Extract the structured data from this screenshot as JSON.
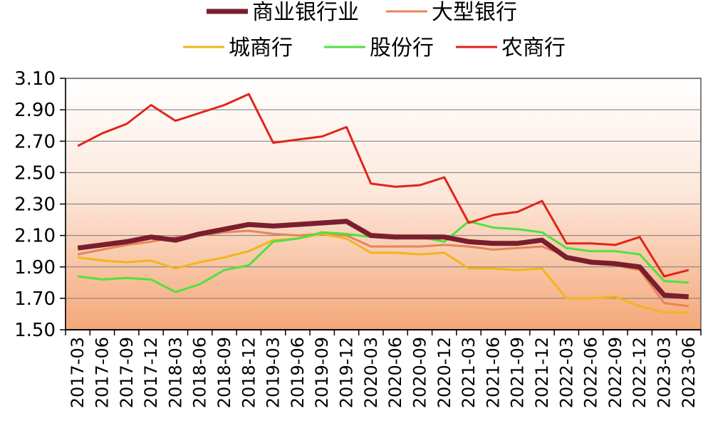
{
  "chart_data": {
    "type": "line",
    "title": "",
    "xlabel": "",
    "ylabel": "",
    "ylim": [
      1.5,
      3.1
    ],
    "yticks": [
      "3.10",
      "2.90",
      "2.70",
      "2.50",
      "2.30",
      "2.10",
      "1.90",
      "1.70",
      "1.50"
    ],
    "grid": true,
    "legend_position": "top",
    "categories": [
      "2017-03",
      "2017-06",
      "2017-09",
      "2017-12",
      "2018-03",
      "2018-06",
      "2018-09",
      "2018-12",
      "2019-03",
      "2019-06",
      "2019-09",
      "2019-12",
      "2020-03",
      "2020-06",
      "2020-09",
      "2020-12",
      "2021-03",
      "2021-06",
      "2021-09",
      "2021-12",
      "2022-03",
      "2022-06",
      "2022-09",
      "2022-12",
      "2023-03",
      "2023-06"
    ],
    "series": [
      {
        "name": "商业银行业",
        "color": "#7a1e2e",
        "width": 7,
        "values": [
          2.02,
          2.04,
          2.06,
          2.09,
          2.07,
          2.11,
          2.14,
          2.17,
          2.16,
          2.17,
          2.18,
          2.19,
          2.1,
          2.09,
          2.09,
          2.09,
          2.06,
          2.05,
          2.05,
          2.07,
          1.96,
          1.93,
          1.92,
          1.9,
          1.72,
          1.71
        ]
      },
      {
        "name": "大型银行",
        "color": "#e8845a",
        "width": 3,
        "values": [
          1.98,
          2.01,
          2.04,
          2.06,
          2.09,
          2.1,
          2.12,
          2.13,
          2.11,
          2.1,
          2.11,
          2.1,
          2.03,
          2.03,
          2.03,
          2.04,
          2.03,
          2.01,
          2.02,
          2.03,
          1.97,
          1.94,
          1.91,
          1.88,
          1.67,
          1.65
        ]
      },
      {
        "name": "城商行",
        "color": "#f2b51b",
        "width": 3,
        "values": [
          1.96,
          1.94,
          1.93,
          1.94,
          1.89,
          1.93,
          1.96,
          2.0,
          2.07,
          2.08,
          2.11,
          2.08,
          1.99,
          1.99,
          1.98,
          1.99,
          1.89,
          1.89,
          1.88,
          1.89,
          1.7,
          1.7,
          1.71,
          1.65,
          1.61,
          1.61
        ]
      },
      {
        "name": "股份行",
        "color": "#4fe23e",
        "width": 3,
        "values": [
          1.84,
          1.82,
          1.83,
          1.82,
          1.74,
          1.79,
          1.88,
          1.91,
          2.06,
          2.08,
          2.12,
          2.11,
          2.09,
          2.08,
          2.09,
          2.06,
          2.19,
          2.15,
          2.14,
          2.12,
          2.02,
          2.0,
          2.0,
          1.98,
          1.81,
          1.8
        ]
      },
      {
        "name": "农商行",
        "color": "#e0251a",
        "width": 3,
        "values": [
          2.67,
          2.75,
          2.81,
          2.93,
          2.83,
          2.88,
          2.93,
          3.0,
          2.69,
          2.71,
          2.73,
          2.79,
          2.43,
          2.41,
          2.42,
          2.47,
          2.18,
          2.23,
          2.25,
          2.32,
          2.05,
          2.05,
          2.04,
          2.09,
          1.84,
          1.88
        ]
      }
    ]
  }
}
